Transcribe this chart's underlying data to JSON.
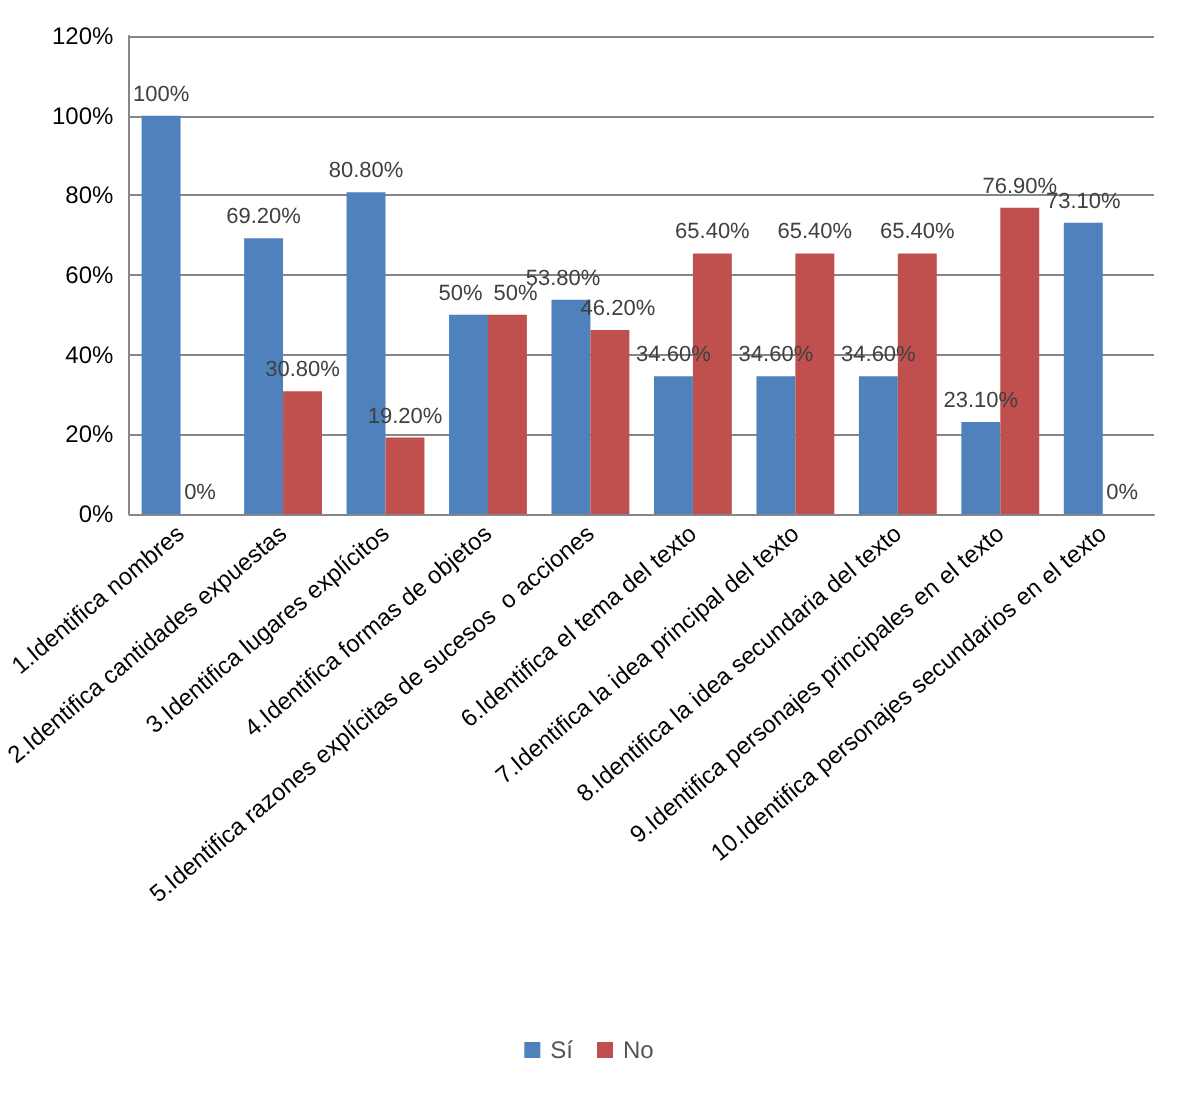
{
  "chart_data": {
    "type": "bar",
    "categories": [
      "1.Identifica nombres",
      "2.Identifica cantidades expuestas",
      "3.Identifica lugares explícitos",
      "4.Identifica formas de objetos",
      "5.Identifica razones explícitas de sucesos  o acciones",
      "6.Identifica el tema del texto",
      "7.Identifica la idea principal del texto",
      "8.Identifica la idea secundaria del texto",
      "9.Identifica personajes principales en el texto",
      "10.Identifica personajes secundarios en el texto"
    ],
    "series": [
      {
        "name": "Sí",
        "color": "#4f81bd",
        "values": [
          100,
          69.2,
          80.8,
          50,
          53.8,
          34.6,
          34.6,
          34.6,
          23.1,
          73.1
        ],
        "value_labels": [
          "100%",
          "69.20%",
          "80.80%",
          "50%",
          "53.80%",
          "34.60%",
          "34.60%",
          "34.60%",
          "23.10%",
          "73.10%"
        ]
      },
      {
        "name": "No",
        "color": "#c0504d",
        "values": [
          0,
          30.8,
          19.2,
          50,
          46.2,
          65.4,
          65.4,
          65.4,
          76.9,
          0
        ],
        "value_labels": [
          "0%",
          "30.80%",
          "19.20%",
          "50%",
          "46.20%",
          "65.40%",
          "65.40%",
          "65.40%",
          "76.90%",
          "0%"
        ]
      }
    ],
    "ylim": [
      0,
      120
    ],
    "yticks": [
      {
        "value": 0,
        "label": "0%"
      },
      {
        "value": 20,
        "label": "20%"
      },
      {
        "value": 40,
        "label": "40%"
      },
      {
        "value": 60,
        "label": "60%"
      },
      {
        "value": 80,
        "label": "80%"
      },
      {
        "value": 100,
        "label": "100%"
      },
      {
        "value": 120,
        "label": "120%"
      }
    ],
    "grid": "y",
    "legend": "bottom"
  }
}
